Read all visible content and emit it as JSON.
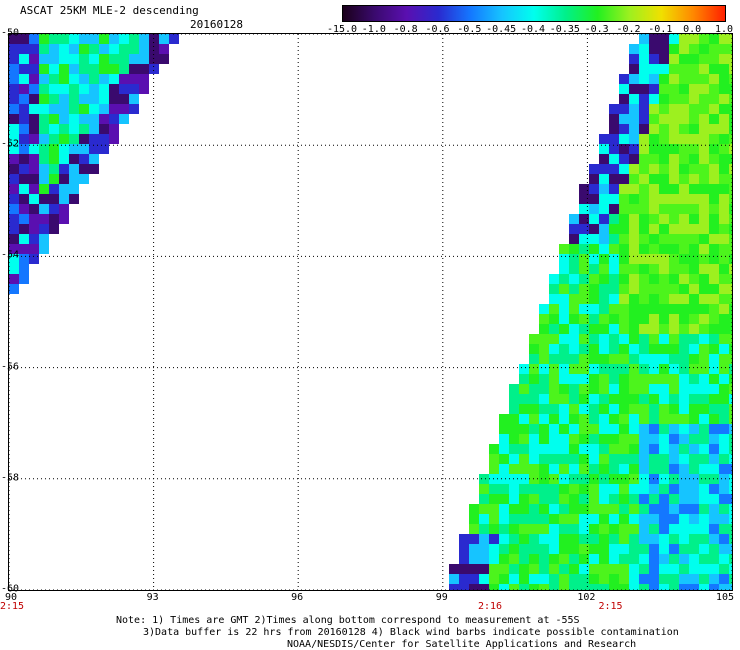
{
  "title": "ASCAT 25KM MLE-2 descending",
  "date": "20160128",
  "colorbar": {
    "labels": [
      "-15.0",
      "-1.0",
      "-0.8",
      "-0.6",
      "-0.5",
      "-0.45",
      "-0.4",
      "-0.35",
      "-0.3",
      "-0.2",
      "-0.1",
      "0.0",
      "1.0"
    ],
    "colors": [
      "#1a001a",
      "#3a0a6e",
      "#5a0fb0",
      "#2a2acf",
      "#1477ff",
      "#16c4ff",
      "#00ffee",
      "#00f08a",
      "#22f020",
      "#9df01f",
      "#f0e000",
      "#ff8800",
      "#ff2000"
    ]
  },
  "map": {
    "lat_labels": [
      "-50",
      "-52",
      "-54",
      "-56",
      "-58",
      "-60"
    ],
    "lon_labels": [
      "90",
      "93",
      "96",
      "99",
      "102",
      "105"
    ],
    "time_labels": [
      {
        "lon": 90,
        "text": "2:15"
      },
      {
        "lon": 100,
        "text": "2:16"
      },
      {
        "lon": 102.5,
        "text": "2:15"
      }
    ]
  },
  "notes": [
    "Note: 1) Times are GMT 2)Times along bottom correspond to measurement at -55S",
    "3)Data buffer is 22 hrs from 20160128 4) Black wind barbs indicate possible contamination",
    "NOAA/NESDIS/Center for Satellite Applications and Research"
  ]
}
